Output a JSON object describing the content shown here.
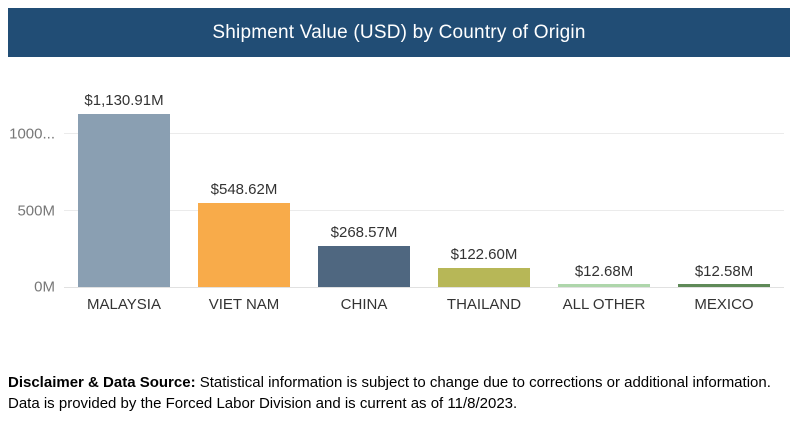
{
  "header": {
    "title": "Shipment Value (USD) by Country of Origin",
    "background_color": "#214d75",
    "text_color": "#ffffff"
  },
  "chart_data": {
    "type": "bar",
    "title": "Shipment Value (USD) by Country of Origin",
    "categories": [
      "MALAYSIA",
      "VIET NAM",
      "CHINA",
      "THAILAND",
      "ALL OTHER",
      "MEXICO"
    ],
    "values": [
      1130.91,
      548.62,
      268.57,
      122.6,
      12.68,
      12.58
    ],
    "value_labels": [
      "$1,130.91M",
      "$548.62M",
      "$268.57M",
      "$122.60M",
      "$12.68M",
      "$12.58M"
    ],
    "bar_colors": [
      "#8a9fb2",
      "#f8ab4a",
      "#4f6780",
      "#b7b757",
      "#aed6ab",
      "#5f8a58"
    ],
    "unit": "USD millions",
    "xlabel": "",
    "ylabel": "",
    "ylim": [
      0,
      1288
    ],
    "yticks": [
      {
        "value": 0,
        "label": "0M"
      },
      {
        "value": 500,
        "label": "500M"
      },
      {
        "value": 1000,
        "label": "1000..."
      }
    ],
    "grid": true,
    "legend": false
  },
  "footer": {
    "bold_prefix": "Disclaimer & Data Source:",
    "line1_rest": " Statistical information is subject to change due to corrections or additional information.",
    "line2": "Data is provided by the Forced Labor Division and is current as of 11/8/2023."
  }
}
